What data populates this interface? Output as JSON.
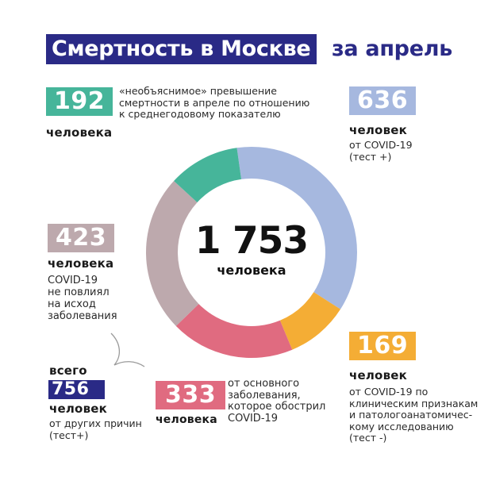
{
  "header": {
    "title_highlight": "Смертность в Москве",
    "title_tail": "за апрель"
  },
  "colors": {
    "title_bg": "#2a2a86",
    "teal": "#46b59a",
    "blue": "#a6b8df",
    "gray": "#bda9ad",
    "pink": "#e06b80",
    "orange": "#f4ad35",
    "navy": "#2a2a86"
  },
  "center": {
    "total": "1 753",
    "unit": "человека"
  },
  "blocks": {
    "unexplained": {
      "value": "192",
      "unit": "человека",
      "desc": [
        "«необъяснимое» превышение",
        "смертности в апреле по отношению",
        "к среднегодовому показателю"
      ]
    },
    "covid_positive": {
      "value": "636",
      "unit": "человек",
      "desc": [
        "от COVID-19",
        "(тест +)"
      ]
    },
    "covid_no_effect": {
      "value": "423",
      "unit": "человека",
      "desc": [
        "COVID-19",
        "не повлиял",
        "на исход",
        "заболевания"
      ]
    },
    "other_causes": {
      "prefix": "всего",
      "value": "756",
      "unit": "человек",
      "desc": [
        "от других причин",
        "(тест+)"
      ]
    },
    "aggravated": {
      "value": "333",
      "unit": "человека",
      "desc": [
        "от основного",
        "заболевания,",
        "которое обострил",
        "COVID-19"
      ]
    },
    "covid_clinical": {
      "value": "169",
      "unit": "человек",
      "desc": [
        "от COVID-19 по",
        "клиническим признакам",
        "и патологоанатомичес-",
        "кому исследованию",
        "(тест -)"
      ]
    }
  },
  "chart_data": {
    "type": "pie",
    "variant": "donut",
    "title": "Смертность в Москве за апрель",
    "center_label": "1 753 человека",
    "total": 1753,
    "categories": [
      "от COVID-19 (тест +)",
      "от COVID-19 по клиническим признакам и патологоанатомическому исследованию (тест -)",
      "от основного заболевания, которое обострил COVID-19",
      "COVID-19 не повлиял на исход заболевания",
      "«необъяснимое» превышение смертности в апреле по отношению к среднегодовому показателю"
    ],
    "values": [
      636,
      169,
      333,
      423,
      192
    ],
    "colors": [
      "#a6b8df",
      "#f4ad35",
      "#e06b80",
      "#bda9ad",
      "#46b59a"
    ],
    "annotations": [
      "всего 756 человек от других причин (тест+) = 333 + 423"
    ],
    "legend_position": "around"
  }
}
